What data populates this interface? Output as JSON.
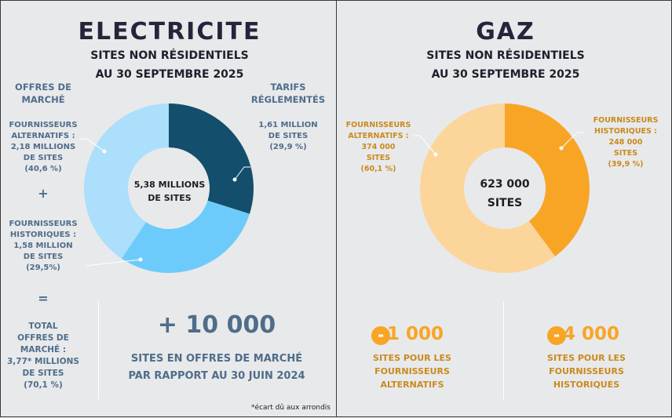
{
  "electricite": {
    "title": "ELECTRICITE",
    "subtitle_line1": "SITES NON RÉSIDENTIELS",
    "subtitle_line2": "AU 30 SEPTEMBRE 2025",
    "offres_header": [
      "OFFRES DE",
      "MARCHÉ"
    ],
    "tarifs_header": [
      "TARIFS",
      "RÉGLEMENTÉS"
    ],
    "alt_label": [
      "FOURNISSEURS",
      "ALTERNATIFS :",
      "2,18 MILLIONS",
      "DE SITES",
      "(40,6 %)"
    ],
    "plus": "+",
    "hist_label": [
      "FOURNISSEURS",
      "HISTORIQUES :",
      "1,58 MILLION",
      "DE SITES",
      "(29,5%)"
    ],
    "tarifs_label": [
      "1,61 MILLION",
      "DE SITES",
      "(29,9 %)"
    ],
    "center": [
      "5,38 MILLIONS",
      "DE SITES"
    ],
    "equals": "=",
    "total_label": [
      "TOTAL",
      "OFFRES DE",
      "MARCHÉ :",
      "3,77* MILLIONS",
      "DE SITES",
      "(70,1 %)"
    ],
    "highlight_value": "+ 10 000",
    "highlight_text": [
      "SITES EN OFFRES DE MARCHÉ",
      "PAR RAPPORT AU 30 JUIN 2024"
    ],
    "footnote": "*écart dû aux arrondis"
  },
  "gaz": {
    "title": "GAZ",
    "subtitle_line1": "SITES NON RÉSIDENTIELS",
    "subtitle_line2": "AU 30 SEPTEMBRE 2025",
    "alt_label": [
      "FOURNISSEURS",
      "ALTERNATIFS :",
      "374 000",
      "SITES",
      "(60,1 %)"
    ],
    "hist_label": [
      "FOURNISSEURS",
      "HISTORIQUES :",
      "248 000",
      "SITES",
      "(39,9 %)"
    ],
    "center": [
      "623 000",
      "SITES"
    ],
    "alt_change": {
      "sign": "-",
      "value": "1 000",
      "text": [
        "SITES POUR LES",
        "FOURNISSEURS",
        "ALTERNATIFS"
      ]
    },
    "hist_change": {
      "sign": "-",
      "value": "4 000",
      "text": [
        "SITES POUR LES",
        "FOURNISSEURS",
        "HISTORIQUES"
      ]
    }
  },
  "colors": {
    "elec_tarifs": "#134f6c",
    "elec_hist": "#6dcbfc",
    "elec_alt": "#abdffc",
    "gaz_hist": "#f8a526",
    "gaz_alt": "#fcd59a",
    "gaz_accent": "#f8a526"
  },
  "chart_data": [
    {
      "type": "pie",
      "title": "ELECTRICITE",
      "categories": [
        "TARIFS RÉGLEMENTÉS",
        "FOURNISSEURS HISTORIQUES",
        "FOURNISSEURS ALTERNATIFS"
      ],
      "values": [
        29.9,
        29.5,
        40.6
      ],
      "unit": "%",
      "series": [
        {
          "values": [
            1.61,
            1.58,
            2.18
          ]
        }
      ],
      "center_label": "5,38 MILLIONS DE SITES"
    },
    {
      "type": "pie",
      "title": "GAZ",
      "categories": [
        "FOURNISSEURS HISTORIQUES",
        "FOURNISSEURS ALTERNATIFS"
      ],
      "values": [
        39.9,
        60.1
      ],
      "unit": "%",
      "series": [
        {
          "values": [
            248000,
            374000
          ]
        }
      ],
      "center_label": "623 000 SITES"
    }
  ]
}
